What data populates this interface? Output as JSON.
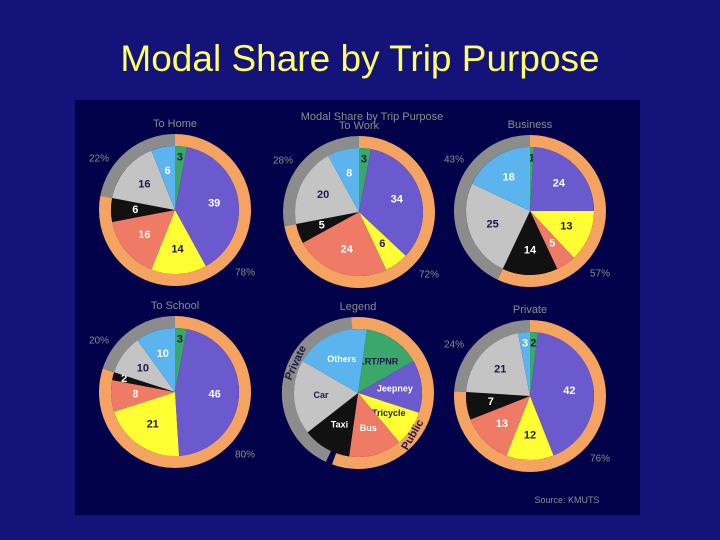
{
  "slide_title": "Modal Share by Trip Purpose",
  "figure": {
    "title": "Modal Share by Trip Purpose",
    "source": "Source: KMUTS"
  },
  "colors": {
    "background": "#13137a",
    "panel": "#02024a",
    "slide_title": "#ffff66",
    "ring_public": "#f4a460",
    "ring_private": "#8c8c8c",
    "LRT/PNR": "#3aa86b",
    "Jeepney": "#6a5acd",
    "Tricycle": "#ffff33",
    "Bus": "#ef7b66",
    "Taxi": "#111111",
    "Car": "#c4c4c4",
    "Others": "#5bb4ee"
  },
  "legend": {
    "title": "Legend",
    "ring_labels": {
      "private": "Private",
      "public": "Public"
    },
    "items": [
      "LRT/PNR",
      "Jeepney",
      "Tricycle",
      "Bus",
      "Taxi",
      "Car",
      "Others"
    ]
  },
  "chart_data": [
    {
      "type": "pie",
      "title": "To Home",
      "categories": [
        "LRT/PNR",
        "Jeepney",
        "Tricycle",
        "Bus",
        "Taxi",
        "Car",
        "Others"
      ],
      "values": [
        3,
        39,
        14,
        16,
        6,
        16,
        6
      ],
      "ring": {
        "private": "22%",
        "public": "78%"
      }
    },
    {
      "type": "pie",
      "title": "To Work",
      "categories": [
        "LRT/PNR",
        "Jeepney",
        "Tricycle",
        "Bus",
        "Taxi",
        "Car",
        "Others"
      ],
      "values": [
        3,
        34,
        6,
        24,
        5,
        20,
        8
      ],
      "ring": {
        "private": "28%",
        "public": "72%"
      }
    },
    {
      "type": "pie",
      "title": "Business",
      "categories": [
        "LRT/PNR",
        "Jeepney",
        "Tricycle",
        "Bus",
        "Taxi",
        "Car",
        "Others"
      ],
      "values": [
        1,
        24,
        13,
        5,
        14,
        25,
        18
      ],
      "ring": {
        "private": "43%",
        "public": "57%"
      }
    },
    {
      "type": "pie",
      "title": "To School",
      "categories": [
        "LRT/PNR",
        "Jeepney",
        "Tricycle",
        "Bus",
        "Taxi",
        "Car",
        "Others"
      ],
      "values": [
        3,
        46,
        21,
        8,
        2,
        10,
        10
      ],
      "ring": {
        "private": "20%",
        "public": "80%"
      }
    },
    {
      "type": "pie",
      "title": "Private",
      "categories": [
        "LRT/PNR",
        "Jeepney",
        "Tricycle",
        "Bus",
        "Taxi",
        "Car",
        "Others"
      ],
      "values": [
        2,
        42,
        12,
        13,
        7,
        21,
        3
      ],
      "ring": {
        "private": "24%",
        "public": "76%"
      }
    }
  ]
}
